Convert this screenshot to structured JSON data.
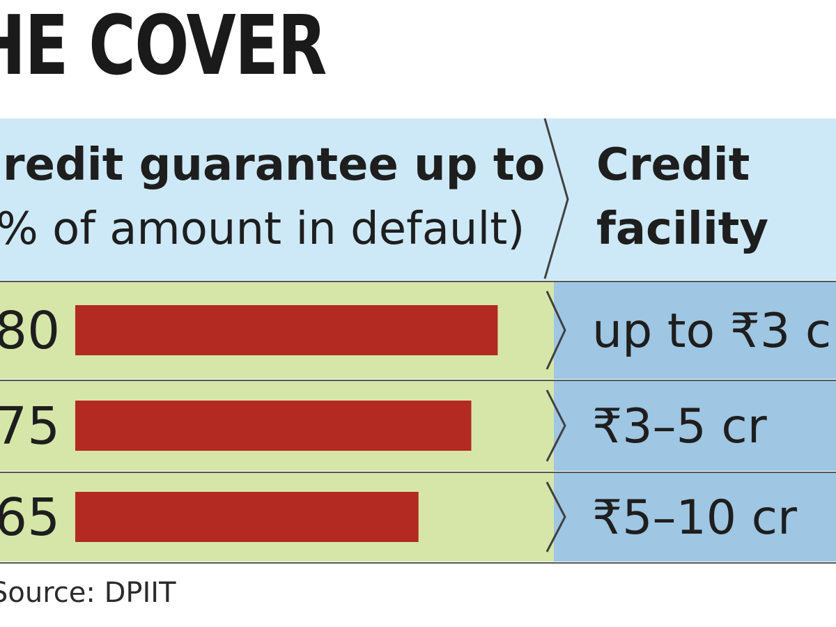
{
  "page": {
    "title": "HE COVER",
    "source": "Source: DPIIT"
  },
  "colors": {
    "header_bg": "#cde9f7",
    "row_left_bg": "#d6e6a9",
    "row_right_bg": "#9fc6e2",
    "bar": "#b22a22",
    "divider": "#404040"
  },
  "chart_data": {
    "type": "bar",
    "orientation": "horizontal",
    "column_headers": {
      "guarantee": [
        "redit guarantee up to",
        "% of amount in default)"
      ],
      "facility": [
        "Credit",
        "facility"
      ]
    },
    "categories": [
      "up to ₹3 c",
      "₹3–5 cr",
      "₹5–10 cr"
    ],
    "value_labels": [
      "80",
      "75",
      "65"
    ],
    "values": [
      80,
      75,
      65
    ],
    "xlim": [
      0,
      100
    ],
    "legend": "none",
    "grid": false
  }
}
